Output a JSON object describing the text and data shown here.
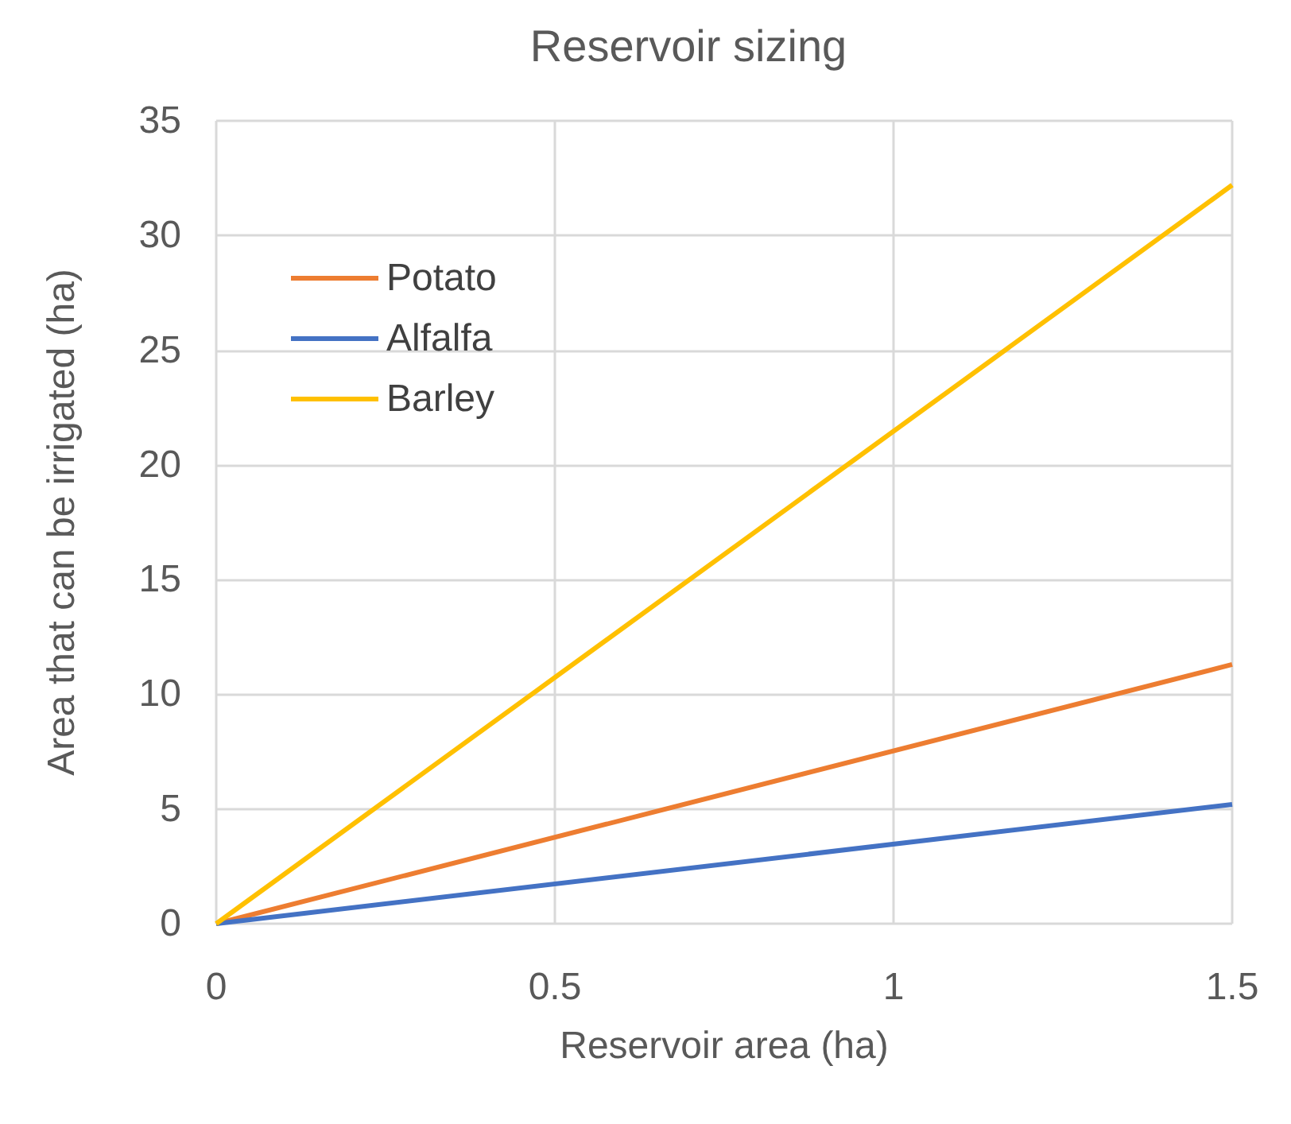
{
  "chart_data": {
    "type": "line",
    "title": "Reservoir sizing",
    "xlabel": "Reservoir area (ha)",
    "ylabel": "Area that can be irrigated (ha)",
    "x": [
      0,
      1.5
    ],
    "series": [
      {
        "name": "Potato",
        "color": "#ed7d31",
        "values": [
          0,
          11.3
        ]
      },
      {
        "name": "Alfalfa",
        "color": "#4472c4",
        "values": [
          0,
          5.2
        ]
      },
      {
        "name": "Barley",
        "color": "#ffc000",
        "values": [
          0,
          32.2
        ]
      }
    ],
    "xlim": [
      0,
      1.5
    ],
    "xticks": [
      0,
      0.5,
      1,
      1.5
    ],
    "ylim": [
      0,
      35
    ],
    "yticks": [
      0,
      5,
      10,
      15,
      20,
      25,
      30,
      35
    ],
    "grid": true,
    "legend": "top left",
    "marker": "none",
    "line_style": "solid"
  }
}
